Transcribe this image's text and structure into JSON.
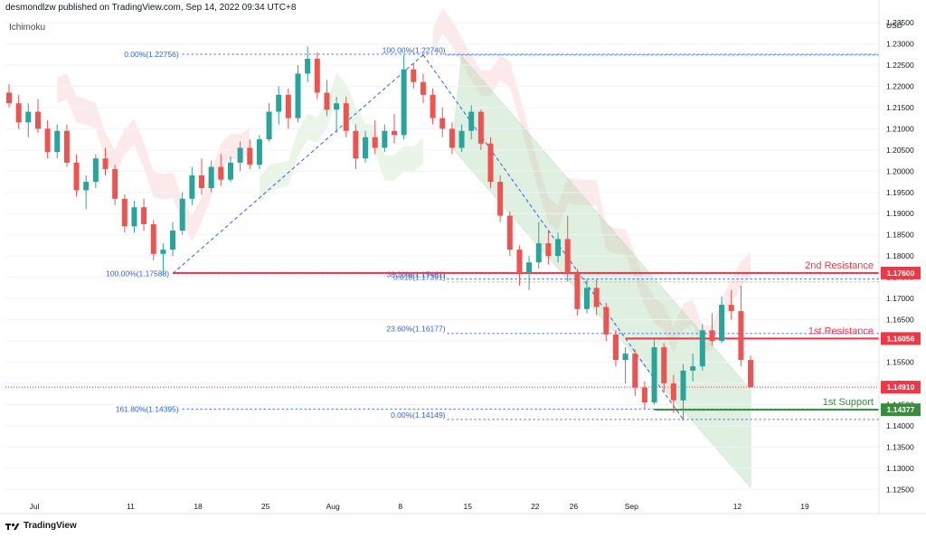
{
  "header": {
    "text": "desmondlzw published on TradingView.com, Sep 14, 2022 09:34 UTC+8"
  },
  "indicator": {
    "label": "Ichimoku"
  },
  "footer": {
    "logo_label": "TradingView"
  },
  "chart_data": {
    "type": "candlestick",
    "currency_label": "USD",
    "x_ticks": [
      {
        "label": "Jul",
        "day": 0
      },
      {
        "label": "11",
        "day": 10
      },
      {
        "label": "18",
        "day": 17
      },
      {
        "label": "25",
        "day": 24
      },
      {
        "label": "Aug",
        "day": 31
      },
      {
        "label": "8",
        "day": 38
      },
      {
        "label": "15",
        "day": 45
      },
      {
        "label": "22",
        "day": 52
      },
      {
        "label": "26",
        "day": 56
      },
      {
        "label": "Sep",
        "day": 62
      },
      {
        "label": "12",
        "day": 73
      },
      {
        "label": "19",
        "day": 80
      }
    ],
    "y_ticks": [
      "1.23500",
      "1.23000",
      "1.22500",
      "1.22000",
      "1.21500",
      "1.21000",
      "1.20500",
      "1.20000",
      "1.19500",
      "1.19000",
      "1.18500",
      "1.18000",
      "1.17500",
      "1.17000",
      "1.16500",
      "1.16000",
      "1.15500",
      "1.15000",
      "1.14500",
      "1.14000",
      "1.13500",
      "1.13000",
      "1.12500"
    ],
    "ylim": [
      1.1225,
      1.2365
    ],
    "levels": [
      {
        "name": "2nd Resistance",
        "value": 1.176,
        "badge": "1.17600",
        "color": "#f23645"
      },
      {
        "name": "1st Resistance",
        "value": 1.16056,
        "badge": "1.16056",
        "color": "#f23645"
      },
      {
        "name": "1st Support",
        "value": 1.14377,
        "badge": "1.14377",
        "color": "#388e3c"
      }
    ],
    "last_price": {
      "value": 1.1491,
      "badge": "1.14910",
      "color": "#f23645"
    },
    "fib_left": [
      {
        "label": "0.00%(1.22756)",
        "value": 1.22756
      },
      {
        "label": "100.00%(1.17588)",
        "value": 1.17588
      },
      {
        "label": "161.80%(1.14395)",
        "value": 1.14395
      }
    ],
    "fib_right": [
      {
        "label": "100.00%(1.22740)",
        "value": 1.2274
      },
      {
        "label": "38.20%(1.17461)",
        "value": 1.17461
      },
      {
        "label": "0.618(1.17391)",
        "value": 1.17391
      },
      {
        "label": "23.60%(1.16177)",
        "value": 1.16177
      },
      {
        "label": "0.00%(1.14149)",
        "value": 1.14149
      }
    ],
    "candles": [
      {
        "d": 0,
        "o": 1.2185,
        "h": 1.2205,
        "l": 1.215,
        "c": 1.216
      },
      {
        "d": 1,
        "o": 1.216,
        "h": 1.218,
        "l": 1.21,
        "c": 1.2115
      },
      {
        "d": 2,
        "o": 1.2115,
        "h": 1.216,
        "l": 1.208,
        "c": 1.214
      },
      {
        "d": 3,
        "o": 1.214,
        "h": 1.217,
        "l": 1.209,
        "c": 1.21
      },
      {
        "d": 4,
        "o": 1.21,
        "h": 1.212,
        "l": 1.203,
        "c": 1.2045
      },
      {
        "d": 5,
        "o": 1.2045,
        "h": 1.211,
        "l": 1.203,
        "c": 1.2095
      },
      {
        "d": 6,
        "o": 1.2095,
        "h": 1.211,
        "l": 1.201,
        "c": 1.202
      },
      {
        "d": 7,
        "o": 1.202,
        "h": 1.204,
        "l": 1.194,
        "c": 1.1955
      },
      {
        "d": 8,
        "o": 1.1955,
        "h": 1.199,
        "l": 1.191,
        "c": 1.1975
      },
      {
        "d": 9,
        "o": 1.1975,
        "h": 1.204,
        "l": 1.196,
        "c": 1.203
      },
      {
        "d": 10,
        "o": 1.203,
        "h": 1.2055,
        "l": 1.199,
        "c": 1.2005
      },
      {
        "d": 11,
        "o": 1.2005,
        "h": 1.2015,
        "l": 1.192,
        "c": 1.1935
      },
      {
        "d": 12,
        "o": 1.1935,
        "h": 1.1945,
        "l": 1.1855,
        "c": 1.187
      },
      {
        "d": 13,
        "o": 1.187,
        "h": 1.193,
        "l": 1.1855,
        "c": 1.1915
      },
      {
        "d": 14,
        "o": 1.1915,
        "h": 1.1935,
        "l": 1.186,
        "c": 1.1875
      },
      {
        "d": 15,
        "o": 1.1875,
        "h": 1.1885,
        "l": 1.179,
        "c": 1.1805
      },
      {
        "d": 16,
        "o": 1.1805,
        "h": 1.183,
        "l": 1.1759,
        "c": 1.1815
      },
      {
        "d": 17,
        "o": 1.1815,
        "h": 1.188,
        "l": 1.18,
        "c": 1.186
      },
      {
        "d": 18,
        "o": 1.186,
        "h": 1.195,
        "l": 1.185,
        "c": 1.1935
      },
      {
        "d": 19,
        "o": 1.1935,
        "h": 1.201,
        "l": 1.192,
        "c": 1.199
      },
      {
        "d": 20,
        "o": 1.199,
        "h": 1.203,
        "l": 1.1945,
        "c": 1.196
      },
      {
        "d": 21,
        "o": 1.196,
        "h": 1.2025,
        "l": 1.195,
        "c": 1.201
      },
      {
        "d": 22,
        "o": 1.201,
        "h": 1.204,
        "l": 1.1965,
        "c": 1.198
      },
      {
        "d": 23,
        "o": 1.198,
        "h": 1.2035,
        "l": 1.1975,
        "c": 1.202
      },
      {
        "d": 24,
        "o": 1.202,
        "h": 1.207,
        "l": 1.2,
        "c": 1.2055
      },
      {
        "d": 25,
        "o": 1.2055,
        "h": 1.2075,
        "l": 1.2005,
        "c": 1.2015
      },
      {
        "d": 26,
        "o": 1.2015,
        "h": 1.2085,
        "l": 1.2005,
        "c": 1.2075
      },
      {
        "d": 27,
        "o": 1.2075,
        "h": 1.216,
        "l": 1.207,
        "c": 1.214
      },
      {
        "d": 28,
        "o": 1.214,
        "h": 1.22,
        "l": 1.211,
        "c": 1.218
      },
      {
        "d": 29,
        "o": 1.218,
        "h": 1.2195,
        "l": 1.21,
        "c": 1.2125
      },
      {
        "d": 30,
        "o": 1.2125,
        "h": 1.225,
        "l": 1.2115,
        "c": 1.223
      },
      {
        "d": 31,
        "o": 1.223,
        "h": 1.2294,
        "l": 1.221,
        "c": 1.2265
      },
      {
        "d": 32,
        "o": 1.2265,
        "h": 1.228,
        "l": 1.217,
        "c": 1.2185
      },
      {
        "d": 33,
        "o": 1.2185,
        "h": 1.2215,
        "l": 1.213,
        "c": 1.2145
      },
      {
        "d": 34,
        "o": 1.2145,
        "h": 1.2175,
        "l": 1.209,
        "c": 1.216
      },
      {
        "d": 35,
        "o": 1.216,
        "h": 1.2175,
        "l": 1.208,
        "c": 1.2095
      },
      {
        "d": 36,
        "o": 1.2095,
        "h": 1.211,
        "l": 1.2005,
        "c": 1.203
      },
      {
        "d": 37,
        "o": 1.203,
        "h": 1.2095,
        "l": 1.202,
        "c": 1.208
      },
      {
        "d": 38,
        "o": 1.208,
        "h": 1.212,
        "l": 1.204,
        "c": 1.2055
      },
      {
        "d": 39,
        "o": 1.2055,
        "h": 1.211,
        "l": 1.2045,
        "c": 1.2095
      },
      {
        "d": 40,
        "o": 1.2095,
        "h": 1.2135,
        "l": 1.2065,
        "c": 1.2085
      },
      {
        "d": 41,
        "o": 1.2085,
        "h": 1.2274,
        "l": 1.2075,
        "c": 1.224
      },
      {
        "d": 42,
        "o": 1.224,
        "h": 1.2255,
        "l": 1.2195,
        "c": 1.221
      },
      {
        "d": 43,
        "o": 1.221,
        "h": 1.223,
        "l": 1.216,
        "c": 1.218
      },
      {
        "d": 44,
        "o": 1.218,
        "h": 1.2195,
        "l": 1.211,
        "c": 1.2125
      },
      {
        "d": 45,
        "o": 1.2125,
        "h": 1.215,
        "l": 1.208,
        "c": 1.21
      },
      {
        "d": 46,
        "o": 1.21,
        "h": 1.2115,
        "l": 1.204,
        "c": 1.2055
      },
      {
        "d": 47,
        "o": 1.2055,
        "h": 1.211,
        "l": 1.2045,
        "c": 1.2095
      },
      {
        "d": 48,
        "o": 1.2095,
        "h": 1.2155,
        "l": 1.2075,
        "c": 1.214
      },
      {
        "d": 49,
        "o": 1.214,
        "h": 1.2145,
        "l": 1.205,
        "c": 1.2065
      },
      {
        "d": 50,
        "o": 1.2065,
        "h": 1.208,
        "l": 1.196,
        "c": 1.1975
      },
      {
        "d": 51,
        "o": 1.1975,
        "h": 1.199,
        "l": 1.188,
        "c": 1.1895
      },
      {
        "d": 52,
        "o": 1.1895,
        "h": 1.1905,
        "l": 1.18,
        "c": 1.1815
      },
      {
        "d": 53,
        "o": 1.1815,
        "h": 1.1825,
        "l": 1.173,
        "c": 1.176
      },
      {
        "d": 54,
        "o": 1.176,
        "h": 1.18,
        "l": 1.172,
        "c": 1.1785
      },
      {
        "d": 55,
        "o": 1.1785,
        "h": 1.188,
        "l": 1.177,
        "c": 1.183
      },
      {
        "d": 56,
        "o": 1.183,
        "h": 1.186,
        "l": 1.178,
        "c": 1.18
      },
      {
        "d": 57,
        "o": 1.18,
        "h": 1.1855,
        "l": 1.1785,
        "c": 1.184
      },
      {
        "d": 58,
        "o": 1.184,
        "h": 1.1895,
        "l": 1.174,
        "c": 1.176
      },
      {
        "d": 59,
        "o": 1.176,
        "h": 1.177,
        "l": 1.166,
        "c": 1.1675
      },
      {
        "d": 60,
        "o": 1.1675,
        "h": 1.1745,
        "l": 1.1665,
        "c": 1.1725
      },
      {
        "d": 61,
        "o": 1.1725,
        "h": 1.1745,
        "l": 1.166,
        "c": 1.168
      },
      {
        "d": 62,
        "o": 1.168,
        "h": 1.169,
        "l": 1.16,
        "c": 1.1615
      },
      {
        "d": 63,
        "o": 1.1615,
        "h": 1.1625,
        "l": 1.154,
        "c": 1.1555
      },
      {
        "d": 64,
        "o": 1.1555,
        "h": 1.1585,
        "l": 1.15,
        "c": 1.157
      },
      {
        "d": 65,
        "o": 1.157,
        "h": 1.158,
        "l": 1.147,
        "c": 1.149
      },
      {
        "d": 66,
        "o": 1.149,
        "h": 1.1505,
        "l": 1.144,
        "c": 1.1455
      },
      {
        "d": 67,
        "o": 1.1455,
        "h": 1.1605,
        "l": 1.145,
        "c": 1.1585
      },
      {
        "d": 68,
        "o": 1.1585,
        "h": 1.1595,
        "l": 1.148,
        "c": 1.15
      },
      {
        "d": 69,
        "o": 1.15,
        "h": 1.152,
        "l": 1.143,
        "c": 1.146
      },
      {
        "d": 70,
        "o": 1.146,
        "h": 1.1545,
        "l": 1.1412,
        "c": 1.153
      },
      {
        "d": 71,
        "o": 1.153,
        "h": 1.157,
        "l": 1.1505,
        "c": 1.154
      },
      {
        "d": 72,
        "o": 1.154,
        "h": 1.164,
        "l": 1.153,
        "c": 1.1625
      },
      {
        "d": 73,
        "o": 1.1625,
        "h": 1.1665,
        "l": 1.159,
        "c": 1.16
      },
      {
        "d": 74,
        "o": 1.16,
        "h": 1.1705,
        "l": 1.1595,
        "c": 1.1685
      },
      {
        "d": 75,
        "o": 1.1685,
        "h": 1.172,
        "l": 1.165,
        "c": 1.167
      },
      {
        "d": 76,
        "o": 1.167,
        "h": 1.173,
        "l": 1.154,
        "c": 1.1555
      },
      {
        "d": 77,
        "o": 1.1555,
        "h": 1.1565,
        "l": 1.149,
        "c": 1.1491
      }
    ]
  }
}
